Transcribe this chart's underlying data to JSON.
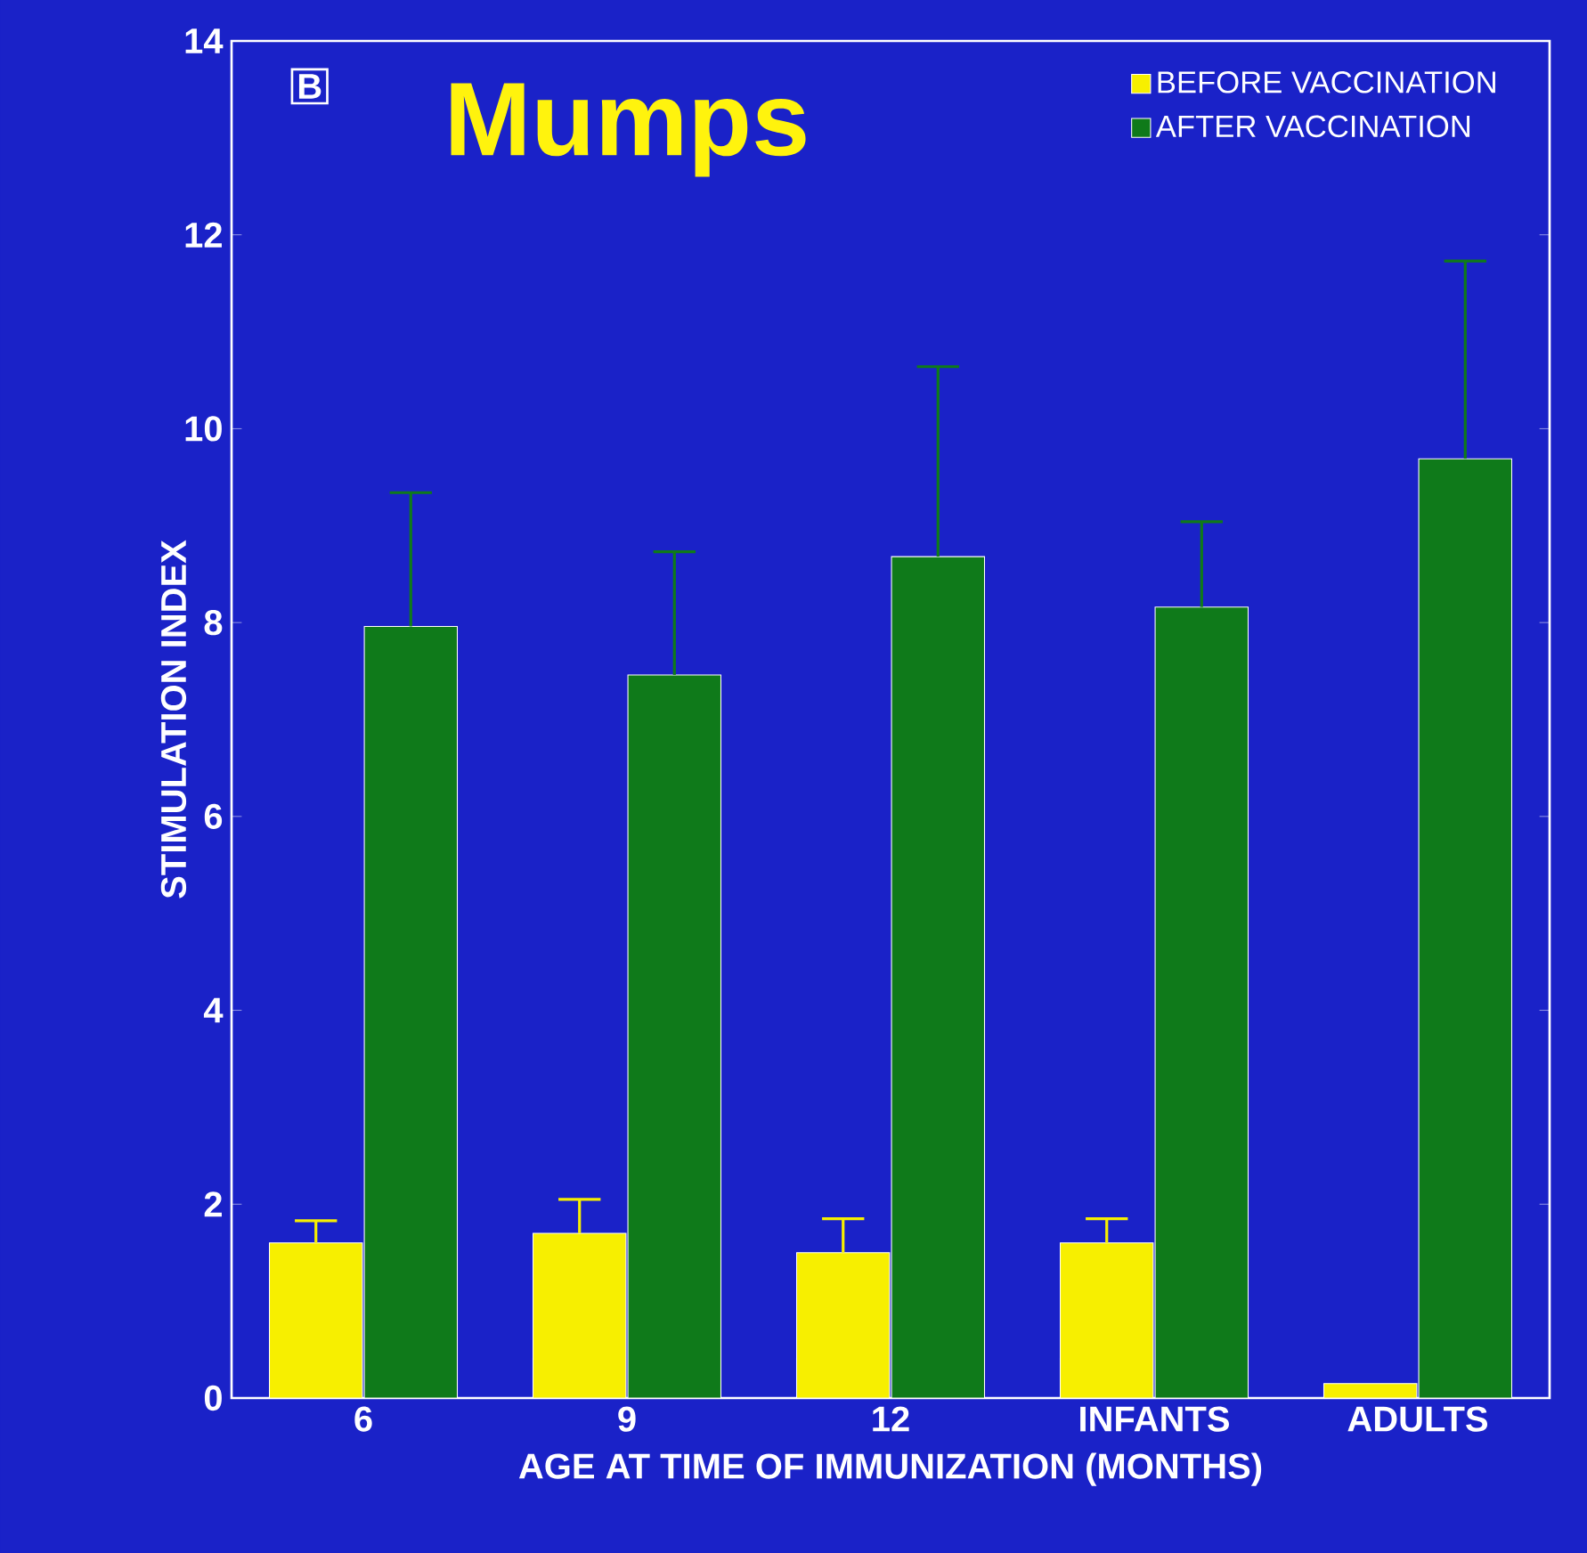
{
  "chart_data": {
    "type": "bar",
    "title": "Mumps",
    "xlabel": "AGE AT TIME OF IMMUNIZATION (MONTHS)",
    "ylabel": "STIMULATION INDEX",
    "annotations": [
      "B"
    ],
    "categories": [
      "6",
      "9",
      "12",
      "INFANTS",
      "ADULTS"
    ],
    "series": [
      {
        "name": "BEFORE VACCINATION",
        "color": "#f7ef00",
        "values": [
          1.6,
          1.7,
          1.5,
          1.6,
          0.15
        ],
        "errors": [
          [
            1.6,
            1.83
          ],
          [
            1.7,
            2.05
          ],
          [
            1.5,
            1.85
          ],
          [
            1.6,
            1.85
          ],
          null
        ]
      },
      {
        "name": "AFTER VACCINATION",
        "color": "#0f7a1a",
        "values": [
          7.96,
          7.46,
          8.68,
          8.16,
          9.69
        ],
        "errors": [
          [
            7.96,
            9.34
          ],
          [
            7.46,
            8.73
          ],
          [
            8.68,
            10.64
          ],
          [
            8.16,
            9.04
          ],
          [
            9.69,
            11.73
          ]
        ]
      }
    ],
    "ylim": [
      0,
      14
    ],
    "yticks": [
      0,
      2,
      4,
      6,
      8,
      10,
      12,
      14
    ],
    "grid": false,
    "legend": "top right"
  }
}
